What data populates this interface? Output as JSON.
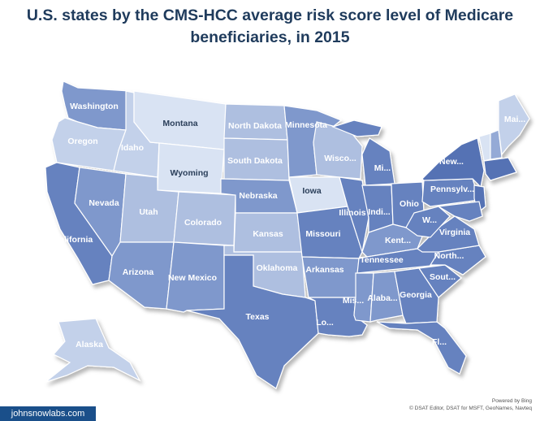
{
  "title": {
    "line1": "U.S. states by the CMS-HCC average risk score level of Medicare",
    "line2": "beneficiaries, in 2015"
  },
  "colors": {
    "lightest": "#d9e3f3",
    "light": "#c3d1ea",
    "mid_light": "#aebfe0",
    "mid": "#95aad6",
    "mid_dark": "#7f98cc",
    "dark": "#6682bf",
    "darkest": "#5472b4",
    "brand_bg": "#1a4f8a"
  },
  "labels": {
    "washington": "Washington",
    "oregon": "Oregon",
    "california": "California",
    "nevada": "Nevada",
    "idaho": "Idaho",
    "montana": "Montana",
    "wyoming": "Wyoming",
    "utah": "Utah",
    "arizona": "Arizona",
    "colorado": "Colorado",
    "new_mexico": "New Mexico",
    "north_dakota": "North Dakota",
    "south_dakota": "South Dakota",
    "nebraska": "Nebraska",
    "kansas": "Kansas",
    "oklahoma": "Oklahoma",
    "texas": "Texas",
    "minnesota": "Minnesota",
    "iowa": "Iowa",
    "missouri": "Missouri",
    "arkansas": "Arkansas",
    "louisiana": "Lo...",
    "wisconsin": "Wisco...",
    "illinois": "Illinois",
    "michigan": "Mi...",
    "indiana": "Indi...",
    "ohio": "Ohio",
    "kentucky": "Kent...",
    "tennessee": "Tennessee",
    "mississippi": "Mis...",
    "alabama": "Alaba...",
    "georgia": "Georgia",
    "florida": "Fl...",
    "south_carolina": "Sout...",
    "north_carolina": "North...",
    "virginia": "Virginia",
    "west_virginia": "W...",
    "pennsylvania": "Pennsylv...",
    "new_york": "New...",
    "maine": "Mai...",
    "alaska": "Alaska"
  },
  "footer": {
    "brand": "johnsnowlabs.com",
    "powered_by": "Powered by Bing",
    "copyright": "© DSAT Editor, DSAT for MSFT, GeoNames, Navteq"
  }
}
